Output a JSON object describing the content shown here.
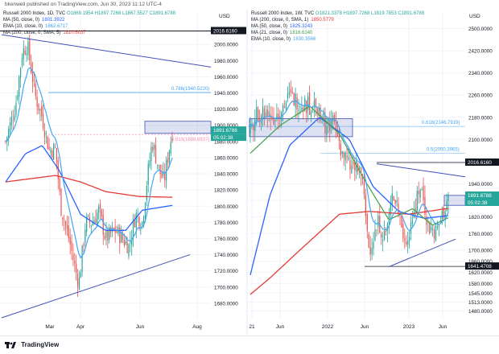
{
  "header": {
    "published": "bkenwell published on TradingView.com, Jun 30, 2023 11:12 UTC-4"
  },
  "footer": {
    "brand": "TradingView"
  },
  "colors": {
    "up": "#26a69a",
    "down": "#ef5350",
    "ma50": "#2962ff",
    "ema10": "#42a5f5",
    "ma200": "#e53935",
    "ma21": "#43a047",
    "trend": "#3f51b5",
    "grey_dark": "#131722"
  },
  "left": {
    "legend": {
      "title": "Russell 2000 Index, 1D, TVC",
      "ohlc": "O1869.1954  H1897.7268  L1867.5527  C1891.6788",
      "ma50": {
        "label": "MA (50, close, 0)",
        "value": "1801.3922"
      },
      "ema10": {
        "label": "EMA (10, close, 0)",
        "value": "1862.6717"
      },
      "ma200": {
        "label": "MA (200, close, 0, SMA, 5)",
        "value": "1810.6037"
      }
    },
    "currency": "USD",
    "fib_786_label": "0.786(1940.5220)",
    "fib_618_label": "0.618(1888.6937)",
    "high_tag": "2016.6160",
    "price_tag": "1891.6788",
    "timer_tag": "05:02:38"
  },
  "right": {
    "legend": {
      "title": "Russell 2000 Index, 1W, TVC",
      "ohlc": "O1821.3378  H1897.7268  L1819.7853  C1891.6788",
      "ma200": {
        "label": "MA (200, close, 0, SMA, 1)",
        "value": "1850.5779"
      },
      "ma50": {
        "label": "MA (50, close, 0)",
        "value": "1825.3243"
      },
      "ma21": {
        "label": "MA (21, close, 0)",
        "value": "1816.6140"
      },
      "ema10": {
        "label": "EMA (10, close, 0)",
        "value": "1830.3566"
      }
    },
    "currency": "USD",
    "fib_618_label": "0.618(2146.7919)",
    "fib_5_label": "0.5(2050.3965)",
    "high_tag": "2016.6160",
    "price_tag": "1891.6788",
    "timer_tag": "05:02:38",
    "low_tag": "1641.4708"
  },
  "chart_data": [
    {
      "type": "candlestick",
      "title": "Russell 2000 Index, 1D, TVC",
      "ylabel": "USD",
      "ylim": [
        1660,
        2040
      ],
      "y_ticks": [
        2000,
        1980,
        1960,
        1940,
        1920,
        1900,
        1880,
        1860,
        1840,
        1820,
        1800,
        1780,
        1760,
        1740,
        1720,
        1700,
        1680
      ],
      "x_ticks": [
        "Mar",
        "Apr",
        "Jun",
        "Aug"
      ],
      "horizontal_levels": [
        2016.616,
        1940.522,
        1888.6937
      ],
      "series": [
        {
          "name": "MA (50, close, 0)",
          "last": 1801.3922
        },
        {
          "name": "EMA (10, close, 0)",
          "last": 1862.6717
        },
        {
          "name": "MA (200, close, 0, SMA, 5)",
          "last": 1810.6037
        }
      ],
      "last_close": 1891.6788
    },
    {
      "type": "candlestick",
      "title": "Russell 2000 Index, 1W, TVC",
      "ylabel": "USD",
      "ylim": [
        1450,
        2560
      ],
      "y_ticks": [
        2500,
        2420,
        2340,
        2260,
        2180,
        2100,
        2020,
        1940,
        1880,
        1820,
        1760,
        1700,
        1660,
        1620,
        1580,
        1545,
        1513,
        1480
      ],
      "x_ticks": [
        "21",
        "Jun",
        "2022",
        "Jun",
        "2023",
        "Jun"
      ],
      "horizontal_levels": [
        2146.7919,
        2050.3965,
        2016.616,
        1641.4708
      ],
      "series": [
        {
          "name": "MA (200, close, 0, SMA, 1)",
          "last": 1850.5779
        },
        {
          "name": "MA (50, close, 0)",
          "last": 1825.3243
        },
        {
          "name": "MA (21, close, 0)",
          "last": 1816.614
        },
        {
          "name": "EMA (10, close, 0)",
          "last": 1830.3566
        }
      ],
      "last_close": 1891.6788
    }
  ]
}
